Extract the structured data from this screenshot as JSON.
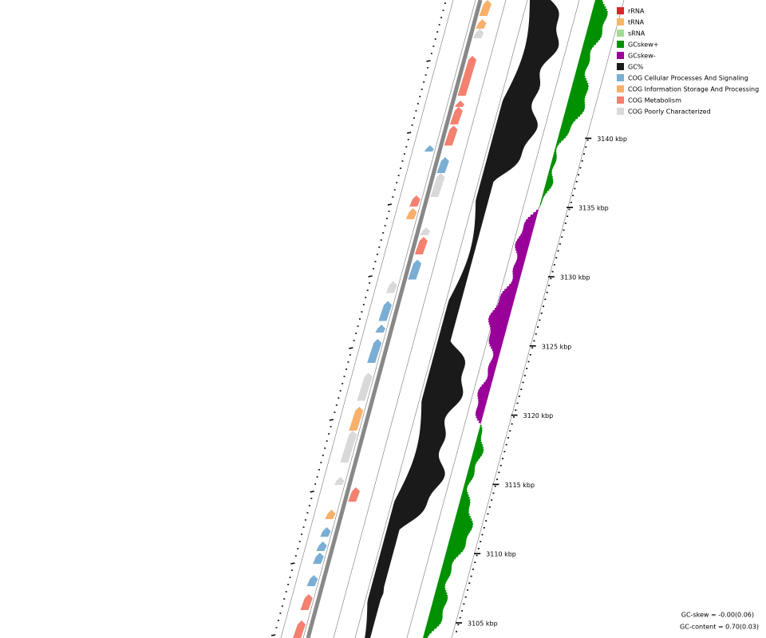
{
  "legend": {
    "items": [
      {
        "label": "rRNA",
        "color": "#d62728"
      },
      {
        "label": "tRNA",
        "color": "#f7b56b"
      },
      {
        "label": "sRNA",
        "color": "#a6da97"
      },
      {
        "label": "GCskew+",
        "color": "#009000"
      },
      {
        "label": "GCskew-",
        "color": "#990099"
      },
      {
        "label": "GC%",
        "color": "#1a1a1a"
      },
      {
        "label": "COG Cellular Processes And Signaling",
        "color": "#7aaed4"
      },
      {
        "label": "COG Information Storage And Processing",
        "color": "#f8b06a"
      },
      {
        "label": "COG Metabolism",
        "color": "#f4806f"
      },
      {
        "label": "COG Poorly Characterized",
        "color": "#d9d9d9"
      }
    ]
  },
  "ticks": [
    "3105 kbp",
    "3110 kbp",
    "3115 kbp",
    "3120 kbp",
    "3125 kbp",
    "3130 kbp",
    "3135 kbp",
    "3140 kbp"
  ],
  "stats": [
    "GC-skew = -0.00(0.06)",
    "GC-content = 0.70(0.03)"
  ]
}
